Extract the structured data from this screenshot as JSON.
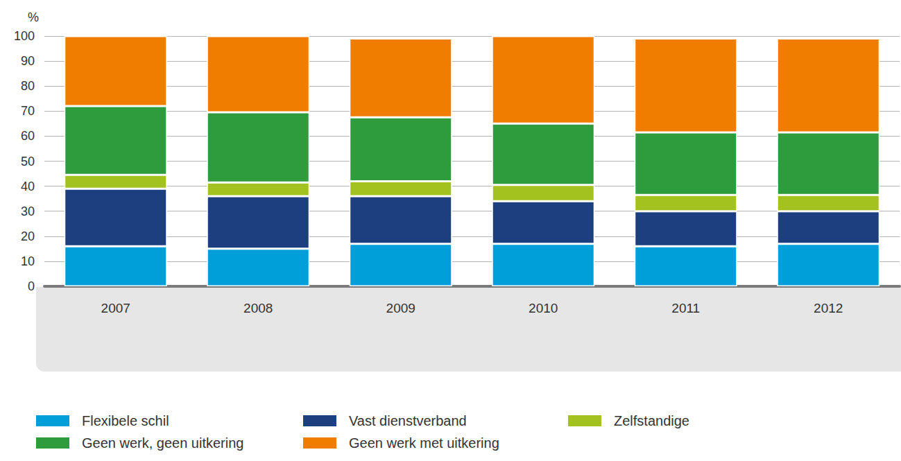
{
  "chart_data": {
    "type": "bar",
    "ylabel": "%",
    "categories": [
      "2007",
      "2008",
      "2009",
      "2010",
      "2011",
      "2012"
    ],
    "series": [
      {
        "name": "Flexibele schil",
        "color": "#009fda",
        "values": [
          16,
          15,
          17,
          17,
          16,
          17
        ]
      },
      {
        "name": "Vast dienstverband",
        "color": "#1b3f7f",
        "values": [
          23,
          21,
          19,
          17,
          14,
          13
        ]
      },
      {
        "name": "Zelfstandige",
        "color": "#a3c11f",
        "values": [
          5.5,
          5.5,
          6,
          6.5,
          6.5,
          6.5
        ]
      },
      {
        "name": "Geen werk, geen uitkering",
        "color": "#2e9b3c",
        "values": [
          27.5,
          28,
          25.5,
          24.5,
          25,
          25
        ]
      },
      {
        "name": "Geen werk met uitkering",
        "color": "#f07d00",
        "values": [
          28,
          30.5,
          31.5,
          35,
          37.5,
          37.5
        ]
      }
    ],
    "ylim": [
      0,
      100
    ],
    "yticks": [
      0,
      10,
      20,
      30,
      40,
      50,
      60,
      70,
      80,
      90,
      100
    ],
    "grid": true,
    "stacked": true,
    "legend": "bottom"
  }
}
